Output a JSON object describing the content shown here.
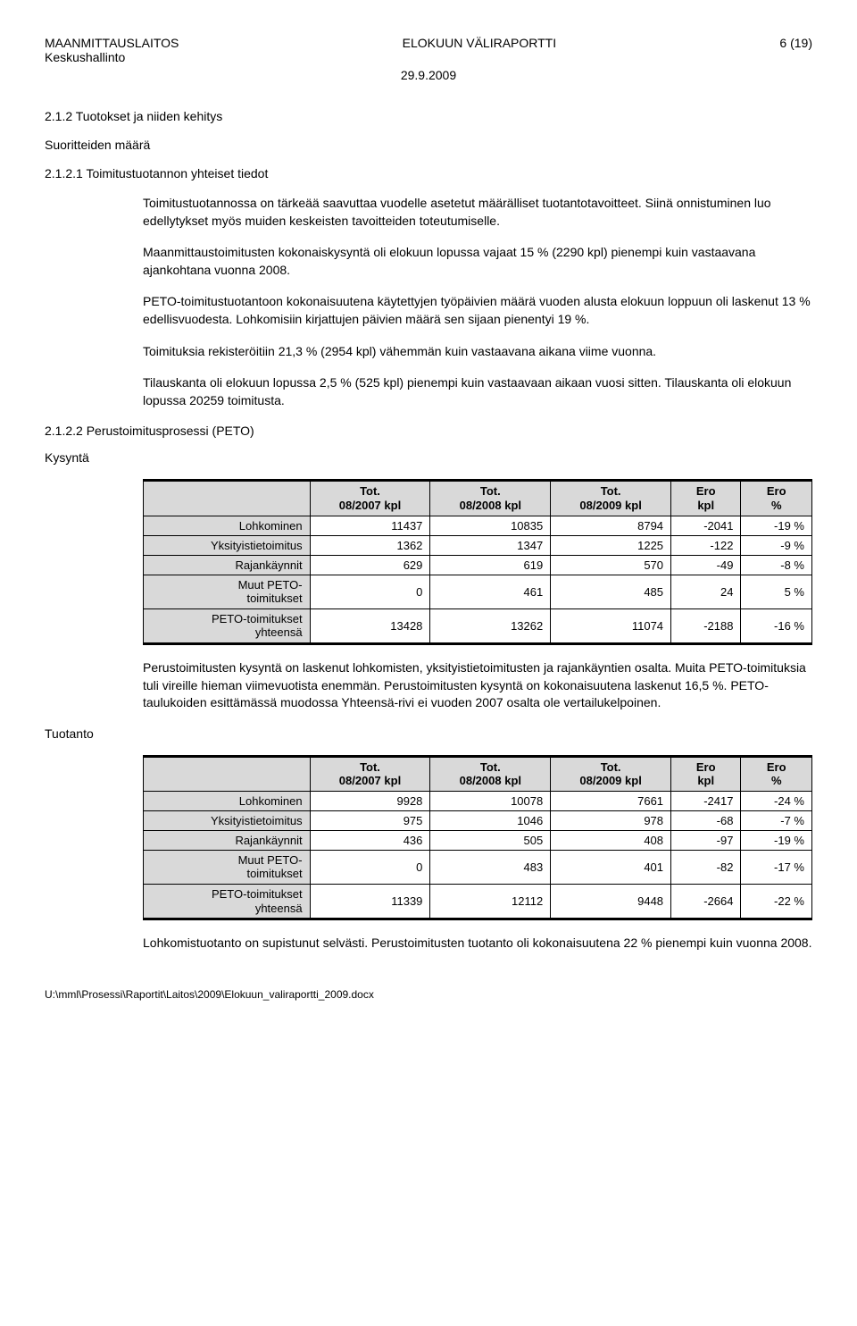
{
  "header": {
    "org": "MAANMITTAUSLAITOS",
    "suborg": "Keskushallinto",
    "title": "ELOKUUN VÄLIRAPORTTI",
    "page": "6 (19)",
    "date": "29.9.2009"
  },
  "section": {
    "num_title": "2.1.2   Tuotokset ja niiden kehitys",
    "sub1_label": "Suoritteiden määrä",
    "sub2_title": "2.1.2.1 Toimitustuotannon yhteiset tiedot",
    "p1": "Toimitustuotannossa on tärkeää saavuttaa vuodelle asetetut määrälliset tuotantotavoitteet. Siinä onnistuminen luo edellytykset myös muiden keskeisten tavoitteiden toteutumiselle.",
    "p2": "Maanmittaustoimitusten kokonaiskysyntä oli elokuun lopussa vajaat 15 % (2290 kpl) pienempi kuin vastaavana ajankohtana vuonna 2008.",
    "p3": "PETO-toimitustuotantoon kokonaisuutena käytettyjen työpäivien määrä vuoden alusta elokuun loppuun oli laskenut 13 % edellisvuodesta. Lohkomisiin kirjattujen päivien määrä sen sijaan pienentyi 19 %.",
    "p4": "Toimituksia rekisteröitiin 21,3 % (2954 kpl) vähemmän kuin vastaavana aikana viime vuonna.",
    "p5": "Tilauskanta oli elokuun lopussa 2,5 % (525 kpl) pienempi kuin vastaavaan aikaan vuosi sitten. Tilauskanta oli elokuun lopussa 20259 toimitusta.",
    "sub3_title": "2.1.2.2  Perustoimitusprosessi (PETO)"
  },
  "kysynta": {
    "label": "Kysyntä",
    "columns": {
      "c0": "",
      "c1_l1": "Tot.",
      "c1_l2": "08/2007 kpl",
      "c2_l1": "Tot.",
      "c2_l2": "08/2008 kpl",
      "c3_l1": "Tot.",
      "c3_l2": "08/2009 kpl",
      "c4_l1": "Ero",
      "c4_l2": "kpl",
      "c5_l1": "Ero",
      "c5_l2": "%"
    },
    "rows": {
      "r0": {
        "label": "Lohkominen",
        "v1": "11437",
        "v2": "10835",
        "v3": "8794",
        "v4": "-2041",
        "v5": "-19 %"
      },
      "r1": {
        "label": "Yksityistietoimitus",
        "v1": "1362",
        "v2": "1347",
        "v3": "1225",
        "v4": "-122",
        "v5": "-9 %"
      },
      "r2": {
        "label": "Rajankäynnit",
        "v1": "629",
        "v2": "619",
        "v3": "570",
        "v4": "-49",
        "v5": "-8 %"
      },
      "r3": {
        "label_l1": "Muut PETO-",
        "label_l2": "toimitukset",
        "v1": "0",
        "v2": "461",
        "v3": "485",
        "v4": "24",
        "v5": "5 %"
      },
      "r4": {
        "label_l1": "PETO-toimitukset",
        "label_l2": "yhteensä",
        "v1": "13428",
        "v2": "13262",
        "v3": "11074",
        "v4": "-2188",
        "v5": "-16 %"
      }
    },
    "para": "Perustoimitusten kysyntä on laskenut lohkomisten,  yksityistietoimitusten ja rajankäyntien osalta. Muita PETO-toimituksia tuli vireille hieman viimevuotista enemmän. Perustoimitusten kysyntä on kokonaisuutena laskenut 16,5 %. PETO-taulukoiden esittämässä muodossa Yhteensä-rivi ei vuoden 2007 osalta ole vertailukelpoinen."
  },
  "tuotanto": {
    "label": "Tuotanto",
    "columns": {
      "c0": "",
      "c1_l1": "Tot.",
      "c1_l2": "08/2007 kpl",
      "c2_l1": "Tot.",
      "c2_l2": "08/2008 kpl",
      "c3_l1": "Tot.",
      "c3_l2": "08/2009 kpl",
      "c4_l1": "Ero",
      "c4_l2": "kpl",
      "c5_l1": "Ero",
      "c5_l2": "%"
    },
    "rows": {
      "r0": {
        "label": "Lohkominen",
        "v1": "9928",
        "v2": "10078",
        "v3": "7661",
        "v4": "-2417",
        "v5": "-24 %"
      },
      "r1": {
        "label": "Yksityistietoimitus",
        "v1": "975",
        "v2": "1046",
        "v3": "978",
        "v4": "-68",
        "v5": "-7 %"
      },
      "r2": {
        "label": "Rajankäynnit",
        "v1": "436",
        "v2": "505",
        "v3": "408",
        "v4": "-97",
        "v5": "-19 %"
      },
      "r3": {
        "label_l1": "Muut PETO-",
        "label_l2": "toimitukset",
        "v1": "0",
        "v2": "483",
        "v3": "401",
        "v4": "-82",
        "v5": "-17 %"
      },
      "r4": {
        "label_l1": "PETO-toimitukset",
        "label_l2": "yhteensä",
        "v1": "11339",
        "v2": "12112",
        "v3": "9448",
        "v4": "-2664",
        "v5": "-22 %"
      }
    },
    "para": "Lohkomistuotanto on supistunut selvästi. Perustoimitusten tuotanto oli kokonaisuutena 22 % pienempi kuin vuonna 2008."
  },
  "footer": "U:\\mml\\Prosessi\\Raportit\\Laitos\\2009\\Elokuun_valiraportti_2009.docx",
  "style": {
    "header_bg": "#d9d9d9",
    "border_color": "#000000",
    "font_body": 14,
    "font_table": 13
  }
}
